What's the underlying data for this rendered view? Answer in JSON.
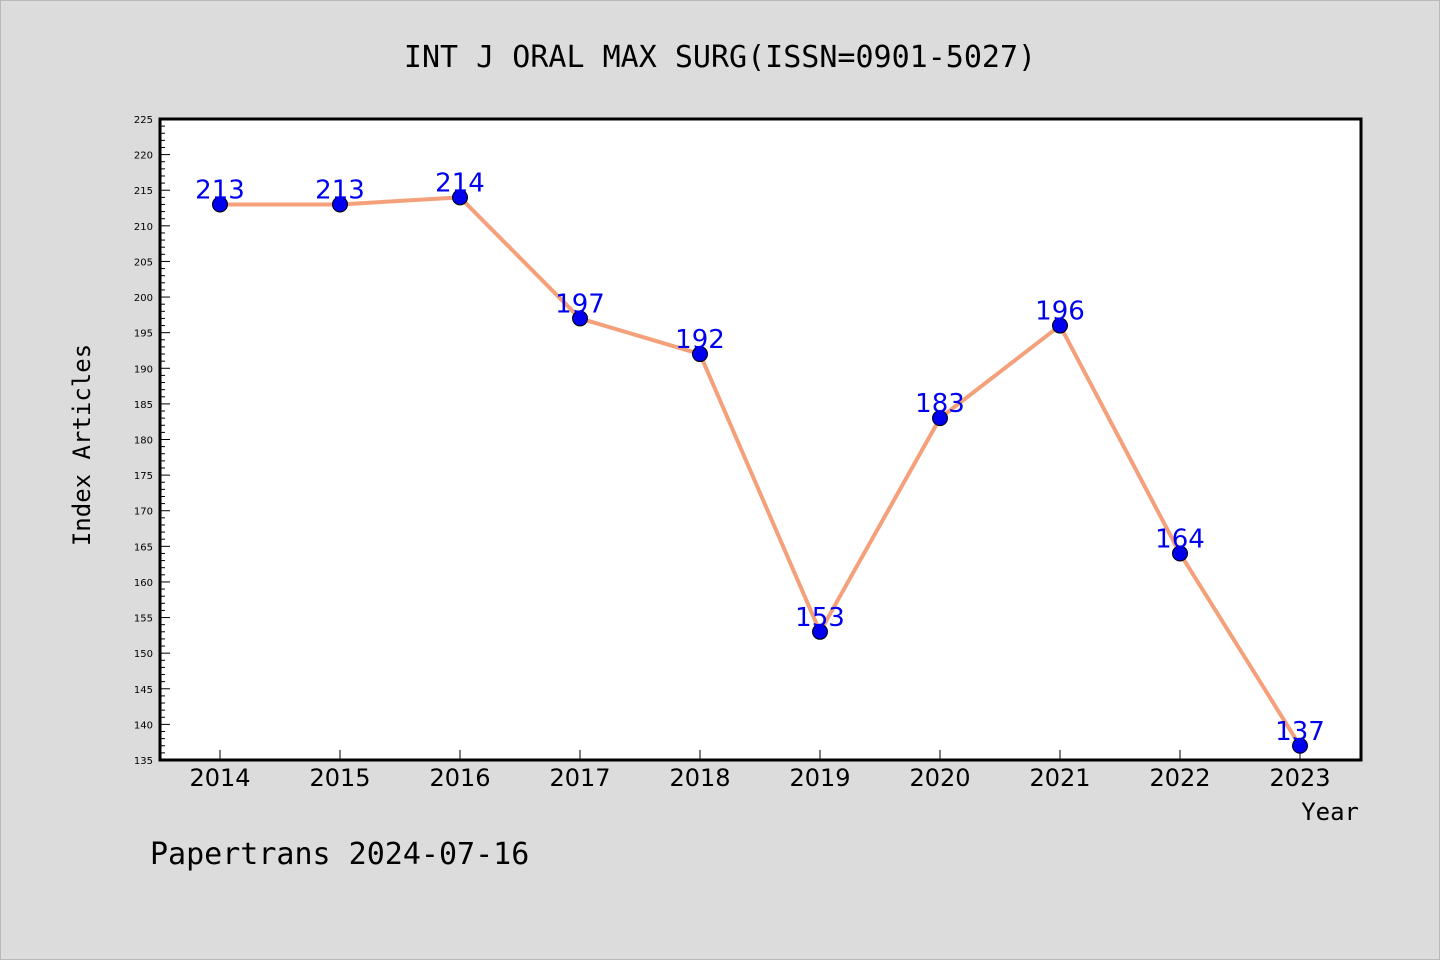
{
  "colors": {
    "background": "#dcdcdc",
    "plot_area": "#ffffff",
    "line": "#f4a07a",
    "marker": "#0000ee",
    "data_label": "#0000ee"
  },
  "footer": {
    "text": "Papertrans 2024-07-16"
  },
  "chart_data": {
    "type": "line",
    "title": "INT J ORAL MAX SURG(ISSN=0901-5027)",
    "xlabel": "Year",
    "ylabel": "Index Articles",
    "ylim": [
      135,
      225
    ],
    "y_major_step": 5,
    "y_minor_step": 1,
    "grid": false,
    "categories": [
      "2014",
      "2015",
      "2016",
      "2017",
      "2018",
      "2019",
      "2020",
      "2021",
      "2022",
      "2023"
    ],
    "series": [
      {
        "values": [
          213,
          213,
          214,
          197,
          192,
          153,
          183,
          196,
          164,
          137
        ]
      }
    ]
  }
}
